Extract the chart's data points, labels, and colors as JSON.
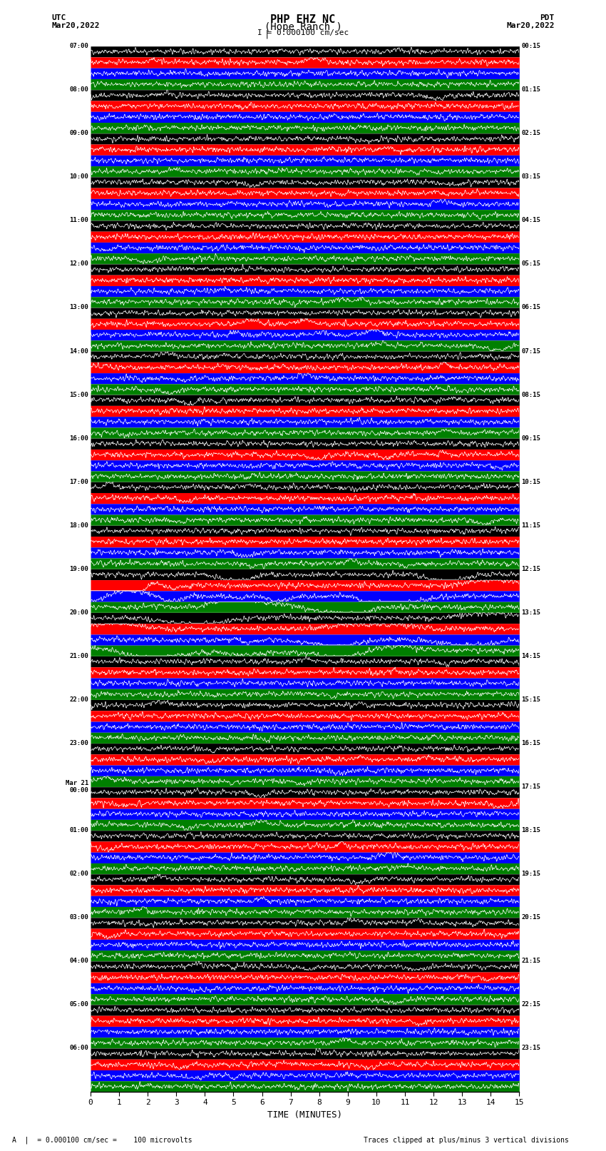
{
  "title_line1": "PHP EHZ NC",
  "title_line2": "(Hope Ranch )",
  "title_line3": "I = 0.000100 cm/sec",
  "label_utc": "UTC",
  "label_pdt": "PDT",
  "date_left": "Mar20,2022",
  "date_right": "Mar20,2022",
  "xlabel": "TIME (MINUTES)",
  "footer_left": "= 0.000100 cm/sec =    100 microvolts",
  "footer_right": "Traces clipped at plus/minus 3 vertical divisions",
  "utc_times_labeled": [
    "07:00",
    "08:00",
    "09:00",
    "10:00",
    "11:00",
    "12:00",
    "13:00",
    "14:00",
    "15:00",
    "16:00",
    "17:00",
    "18:00",
    "19:00",
    "20:00",
    "21:00",
    "22:00",
    "23:00",
    "Mar 21\n00:00",
    "01:00",
    "02:00",
    "03:00",
    "04:00",
    "05:00",
    "06:00"
  ],
  "pdt_times_labeled": [
    "00:15",
    "01:15",
    "02:15",
    "03:15",
    "04:15",
    "05:15",
    "06:15",
    "07:15",
    "08:15",
    "09:15",
    "10:15",
    "11:15",
    "12:15",
    "13:15",
    "14:15",
    "15:15",
    "16:15",
    "17:15",
    "18:15",
    "19:15",
    "20:15",
    "21:15",
    "22:15",
    "23:15"
  ],
  "n_hour_groups": 24,
  "traces_per_hour": 4,
  "row_colors": [
    "black",
    "red",
    "blue",
    "green"
  ],
  "bg_color": "white",
  "xmin": 0,
  "xmax": 15,
  "xticks": [
    0,
    1,
    2,
    3,
    4,
    5,
    6,
    7,
    8,
    9,
    10,
    11,
    12,
    13,
    14,
    15
  ],
  "high_amplitude_groups": [
    12,
    13
  ]
}
